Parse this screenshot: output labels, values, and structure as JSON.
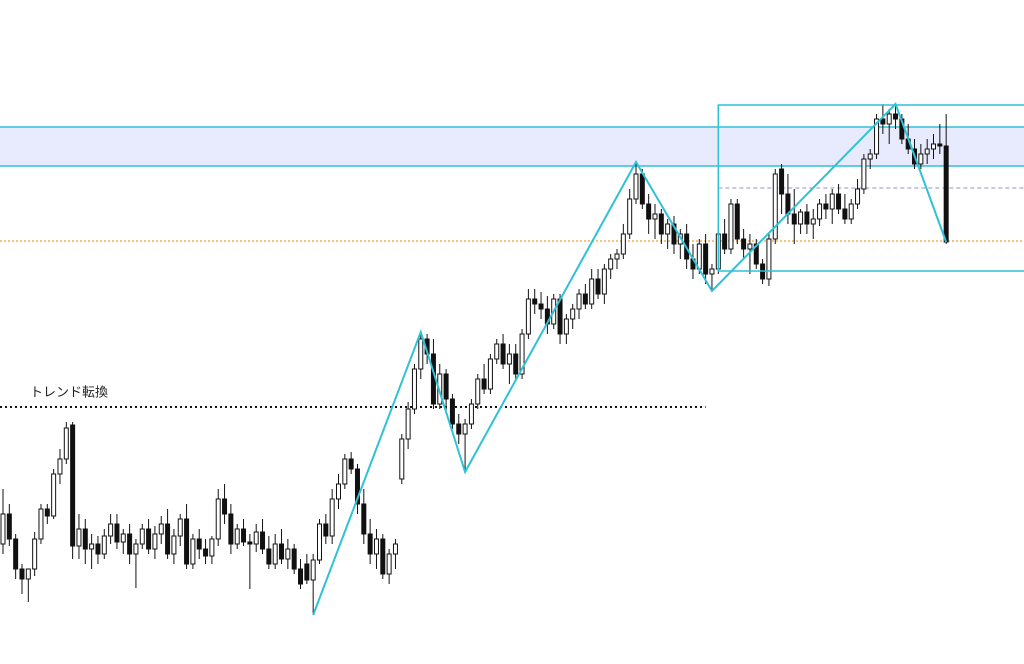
{
  "chart_data": {
    "type": "candlestick",
    "label": "トレンド転換",
    "categories": [
      null,
      null,
      null,
      null,
      null,
      null,
      null,
      null,
      null,
      null,
      null,
      null,
      null,
      null,
      null,
      null,
      null,
      null,
      null,
      null,
      null,
      null,
      null,
      null,
      null,
      null,
      null,
      null,
      null,
      null,
      null,
      null,
      null,
      null,
      null,
      null,
      null,
      null,
      null,
      null,
      null,
      null,
      null,
      null,
      null,
      null,
      null,
      null,
      null,
      null,
      null,
      null,
      null,
      null,
      null,
      null,
      null,
      null,
      null,
      null,
      null,
      null,
      null,
      null,
      null,
      null,
      null,
      null,
      null,
      null,
      null,
      null,
      null,
      null,
      null,
      null,
      null,
      null,
      null,
      null,
      null,
      null,
      null,
      null,
      null,
      null,
      null,
      null,
      null,
      null,
      null,
      null,
      null,
      null,
      null,
      null,
      null,
      null,
      null,
      null,
      null,
      null,
      null,
      null,
      null,
      null,
      null,
      null,
      null,
      null,
      null,
      null,
      null,
      null,
      null,
      null,
      null,
      null,
      null,
      null,
      null,
      null,
      null,
      null,
      null,
      null,
      null,
      null,
      null,
      null,
      null,
      null,
      null,
      null,
      null,
      null,
      null,
      null,
      null,
      null,
      null,
      null,
      null,
      null,
      null,
      null,
      null,
      null,
      null,
      null
    ],
    "ohlc": [
      [
        120,
        175,
        110,
        150
      ],
      [
        150,
        160,
        118,
        125
      ],
      [
        125,
        130,
        85,
        95
      ],
      [
        95,
        100,
        70,
        85
      ],
      [
        85,
        95,
        62,
        95
      ],
      [
        95,
        132,
        88,
        125
      ],
      [
        125,
        160,
        120,
        155
      ],
      [
        155,
        160,
        140,
        148
      ],
      [
        148,
        195,
        145,
        190
      ],
      [
        190,
        215,
        180,
        205
      ],
      [
        205,
        242,
        200,
        236
      ],
      [
        239,
        242,
        105,
        118
      ],
      [
        118,
        150,
        105,
        135
      ],
      [
        135,
        145,
        100,
        115
      ],
      [
        115,
        130,
        95,
        120
      ],
      [
        120,
        128,
        100,
        110
      ],
      [
        110,
        135,
        105,
        128
      ],
      [
        128,
        150,
        120,
        140
      ],
      [
        140,
        150,
        115,
        122
      ],
      [
        122,
        135,
        110,
        130
      ],
      [
        130,
        140,
        100,
        110
      ],
      [
        110,
        125,
        76,
        120
      ],
      [
        120,
        140,
        115,
        135
      ],
      [
        135,
        145,
        110,
        115
      ],
      [
        115,
        138,
        105,
        130
      ],
      [
        130,
        148,
        120,
        140
      ],
      [
        140,
        155,
        105,
        110
      ],
      [
        110,
        135,
        100,
        128
      ],
      [
        128,
        150,
        118,
        145
      ],
      [
        145,
        160,
        95,
        100
      ],
      [
        100,
        130,
        95,
        125
      ],
      [
        125,
        135,
        105,
        115
      ],
      [
        115,
        125,
        100,
        108
      ],
      [
        108,
        128,
        100,
        125
      ],
      [
        125,
        175,
        118,
        165
      ],
      [
        165,
        180,
        140,
        150
      ],
      [
        150,
        160,
        110,
        120
      ],
      [
        120,
        140,
        115,
        135
      ],
      [
        135,
        145,
        118,
        122
      ],
      [
        122,
        130,
        75,
        120
      ],
      [
        120,
        140,
        112,
        132
      ],
      [
        132,
        145,
        110,
        115
      ],
      [
        115,
        128,
        95,
        100
      ],
      [
        100,
        130,
        95,
        120
      ],
      [
        120,
        135,
        100,
        105
      ],
      [
        105,
        125,
        95,
        115
      ],
      [
        115,
        120,
        90,
        95
      ],
      [
        95,
        105,
        75,
        80
      ],
      [
        100,
        110,
        80,
        84
      ],
      [
        84,
        110,
        49,
        104
      ],
      [
        104,
        145,
        100,
        140
      ],
      [
        140,
        150,
        120,
        128
      ],
      [
        128,
        175,
        120,
        165
      ],
      [
        165,
        190,
        155,
        180
      ],
      [
        180,
        210,
        175,
        205
      ],
      [
        205,
        212,
        190,
        195
      ],
      [
        195,
        200,
        150,
        160
      ],
      [
        160,
        175,
        120,
        130
      ],
      [
        130,
        145,
        100,
        110
      ],
      [
        110,
        135,
        95,
        125
      ],
      [
        125,
        130,
        85,
        90
      ],
      [
        90,
        115,
        80,
        110
      ],
      [
        110,
        125,
        95,
        120
      ],
      [
        185,
        230,
        180,
        225
      ],
      [
        225,
        262,
        215,
        255
      ],
      [
        255,
        300,
        250,
        295
      ],
      [
        295,
        332,
        285,
        325
      ],
      [
        325,
        330,
        300,
        310
      ],
      [
        310,
        325,
        255,
        260
      ],
      [
        260,
        300,
        255,
        290
      ],
      [
        290,
        295,
        250,
        265
      ],
      [
        265,
        270,
        235,
        240
      ],
      [
        240,
        250,
        220,
        230
      ],
      [
        230,
        245,
        192,
        240
      ],
      [
        240,
        265,
        235,
        260
      ],
      [
        260,
        290,
        255,
        285
      ],
      [
        285,
        300,
        270,
        275
      ],
      [
        275,
        310,
        270,
        305
      ],
      [
        305,
        325,
        300,
        320
      ],
      [
        320,
        330,
        295,
        300
      ],
      [
        300,
        320,
        280,
        310
      ],
      [
        310,
        320,
        285,
        290
      ],
      [
        290,
        335,
        285,
        330
      ],
      [
        330,
        375,
        325,
        365
      ],
      [
        365,
        375,
        350,
        360
      ],
      [
        360,
        372,
        345,
        355
      ],
      [
        355,
        368,
        330,
        340
      ],
      [
        340,
        370,
        335,
        365
      ],
      [
        365,
        370,
        320,
        330
      ],
      [
        330,
        350,
        320,
        345
      ],
      [
        345,
        360,
        335,
        355
      ],
      [
        355,
        375,
        345,
        370
      ],
      [
        370,
        380,
        355,
        360
      ],
      [
        360,
        395,
        355,
        385
      ],
      [
        385,
        395,
        365,
        370
      ],
      [
        370,
        400,
        360,
        395
      ],
      [
        395,
        410,
        385,
        405
      ],
      [
        405,
        415,
        395,
        410
      ],
      [
        410,
        440,
        405,
        430
      ],
      [
        430,
        475,
        425,
        465
      ],
      [
        465,
        502,
        460,
        490
      ],
      [
        490,
        495,
        455,
        460
      ],
      [
        460,
        470,
        430,
        445
      ],
      [
        445,
        460,
        425,
        450
      ],
      [
        450,
        455,
        420,
        430
      ],
      [
        430,
        445,
        415,
        440
      ],
      [
        440,
        448,
        410,
        420
      ],
      [
        420,
        435,
        405,
        430
      ],
      [
        430,
        440,
        395,
        405
      ],
      [
        405,
        420,
        385,
        395
      ],
      [
        395,
        425,
        390,
        420
      ],
      [
        420,
        430,
        380,
        390
      ],
      [
        390,
        400,
        373,
        395
      ],
      [
        395,
        440,
        390,
        430
      ],
      [
        430,
        445,
        410,
        415
      ],
      [
        415,
        465,
        410,
        460
      ],
      [
        460,
        465,
        420,
        425
      ],
      [
        425,
        435,
        405,
        415
      ],
      [
        415,
        430,
        390,
        420
      ],
      [
        420,
        425,
        395,
        400
      ],
      [
        400,
        405,
        380,
        385
      ],
      [
        385,
        430,
        378,
        425
      ],
      [
        425,
        495,
        420,
        490
      ],
      [
        495,
        500,
        450,
        470
      ],
      [
        470,
        490,
        440,
        450
      ],
      [
        450,
        475,
        420,
        440
      ],
      [
        440,
        455,
        430,
        452
      ],
      [
        452,
        460,
        430,
        440
      ],
      [
        440,
        455,
        425,
        445
      ],
      [
        445,
        465,
        438,
        460
      ],
      [
        460,
        470,
        445,
        455
      ],
      [
        455,
        475,
        440,
        470
      ],
      [
        470,
        480,
        450,
        455
      ],
      [
        455,
        470,
        440,
        445
      ],
      [
        445,
        465,
        440,
        460
      ],
      [
        460,
        485,
        455,
        475
      ],
      [
        475,
        510,
        470,
        505
      ],
      [
        505,
        515,
        495,
        510
      ],
      [
        510,
        550,
        505,
        545
      ],
      [
        545,
        560,
        530,
        540
      ],
      [
        540,
        555,
        520,
        550
      ],
      [
        550,
        560,
        535,
        545
      ],
      [
        545,
        550,
        520,
        525
      ],
      [
        525,
        540,
        510,
        515
      ],
      [
        515,
        525,
        495,
        500
      ],
      [
        500,
        520,
        495,
        510
      ],
      [
        510,
        525,
        500,
        515
      ],
      [
        515,
        530,
        505,
        520
      ],
      [
        520,
        540,
        510,
        518
      ],
      [
        518,
        550,
        420,
        422
      ]
    ],
    "ylim": [
      0,
      664
    ],
    "zigzag": {
      "x": [
        49,
        66,
        73,
        100,
        112,
        141,
        149
      ],
      "y": [
        49,
        332,
        192,
        502,
        373,
        560,
        422
      ],
      "color": "#2fc1d6"
    },
    "zone": [
      498,
      537
    ],
    "box": {
      "x": 113,
      "range": [
        393,
        559
      ]
    },
    "trend_level": {
      "y": 257,
      "x_end": 111
    },
    "orange_level": 423,
    "purple_level": {
      "y": 476,
      "x": 113
    }
  }
}
